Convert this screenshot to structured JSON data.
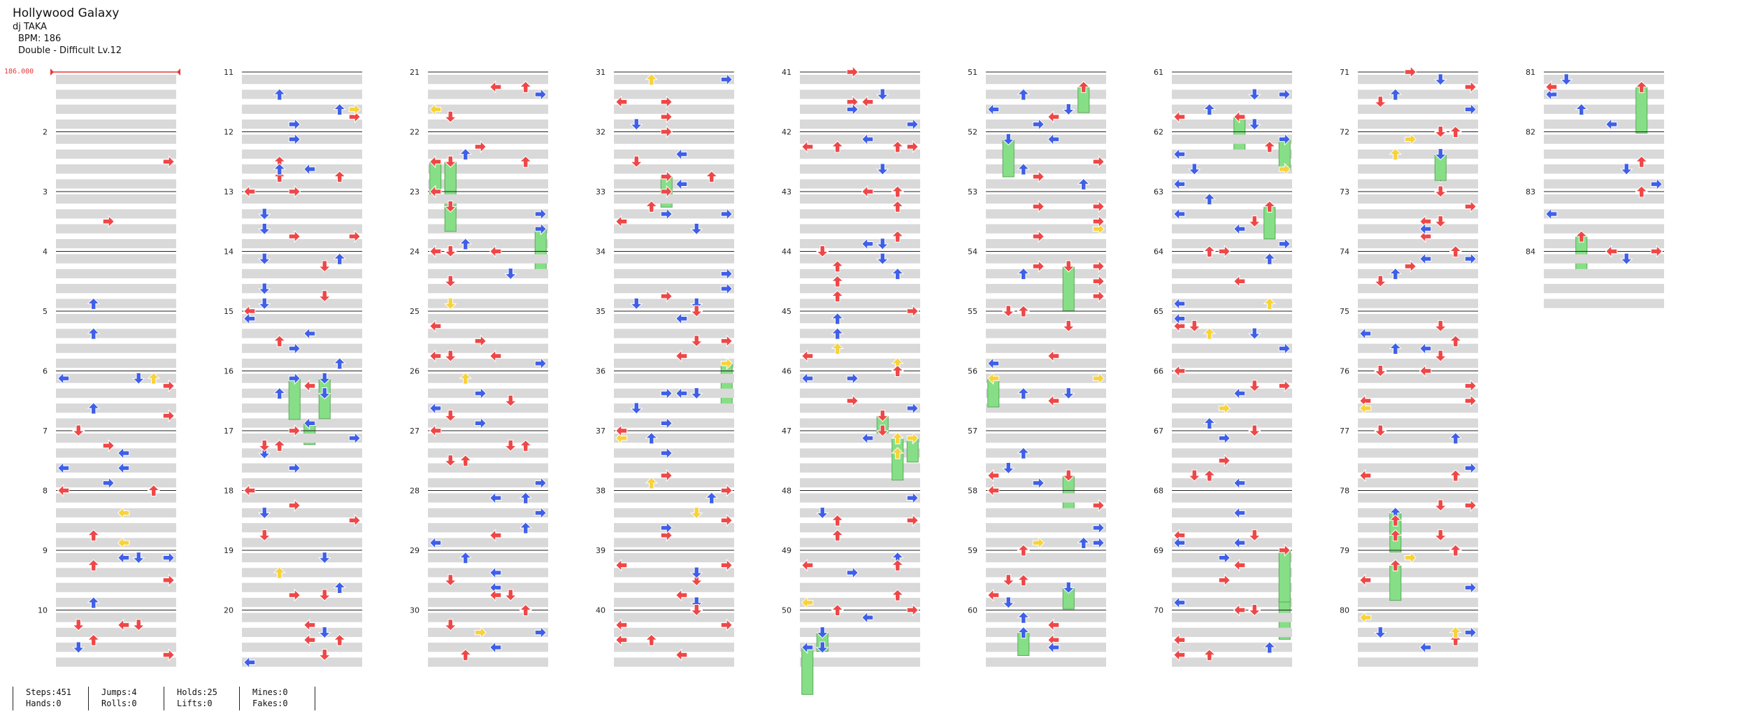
{
  "song": {
    "title": "Hollywood Galaxy",
    "artist": "dj TAKA",
    "bpm_line": "BPM: 186",
    "difficulty_line": "Double - Difficult  Lv.12"
  },
  "bpm_marker": "186.000",
  "chart_info": {
    "total_measures": 84,
    "measures_per_column": 10,
    "columns": 9,
    "lanes": 8,
    "colors": {
      "quarter": "#ef4747",
      "eighth": "#3f5fe8",
      "sixteenth": "#f7d33a",
      "hold": "#86df86",
      "band": "#d9d9d9",
      "bpm": "#e53935"
    }
  },
  "stats": {
    "steps": "Steps:451",
    "jumps": "Jumps:4",
    "holds": "Holds:25",
    "mines": "Mines:0",
    "hands": "Hands:0",
    "rolls": "Rolls:0",
    "lifts": "Lifts:0",
    "fakes": "Fakes:0"
  }
}
